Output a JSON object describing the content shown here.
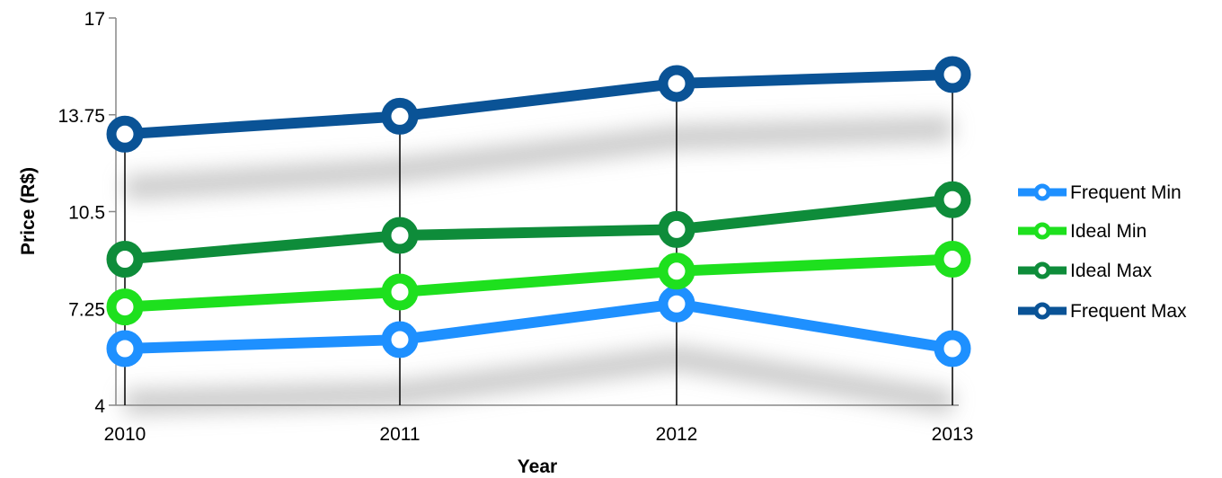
{
  "chart_data": {
    "type": "line",
    "title": "",
    "xlabel": "Year",
    "ylabel": "Price (R$)",
    "x": [
      "2010",
      "2011",
      "2012",
      "2013"
    ],
    "ylim": [
      4,
      17
    ],
    "yticks": [
      "4",
      "7.25",
      "10.5",
      "13.75",
      "17"
    ],
    "grid": false,
    "legend": "right",
    "series": [
      {
        "name": "Frequent Min",
        "color": "#1E90FF",
        "values": [
          5.9,
          6.2,
          7.4,
          5.9
        ]
      },
      {
        "name": "Ideal Min",
        "color": "#1EE01E",
        "values": [
          7.3,
          7.8,
          8.5,
          8.9
        ]
      },
      {
        "name": "Ideal Max",
        "color": "#0E8C3A",
        "values": [
          8.9,
          9.7,
          9.9,
          10.9
        ]
      },
      {
        "name": "Frequent Max",
        "color": "#0A5396",
        "values": [
          13.1,
          13.7,
          14.8,
          15.1
        ]
      }
    ]
  }
}
